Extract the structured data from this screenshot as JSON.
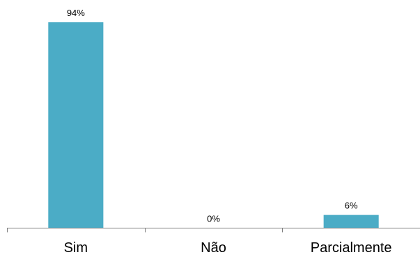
{
  "chart_data": {
    "type": "bar",
    "categories": [
      "Sim",
      "Não",
      "Parcialmente"
    ],
    "values": [
      94,
      0,
      6
    ],
    "data_labels": [
      "94%",
      "0%",
      "6%"
    ],
    "unit": "%",
    "ylim": [
      0,
      100
    ],
    "title": "",
    "xlabel": "",
    "ylabel": "",
    "grid": false,
    "legend": "none",
    "colors": {
      "bar": "#4bacc6",
      "axis": "#7f7f7f",
      "text": "#000000"
    }
  }
}
